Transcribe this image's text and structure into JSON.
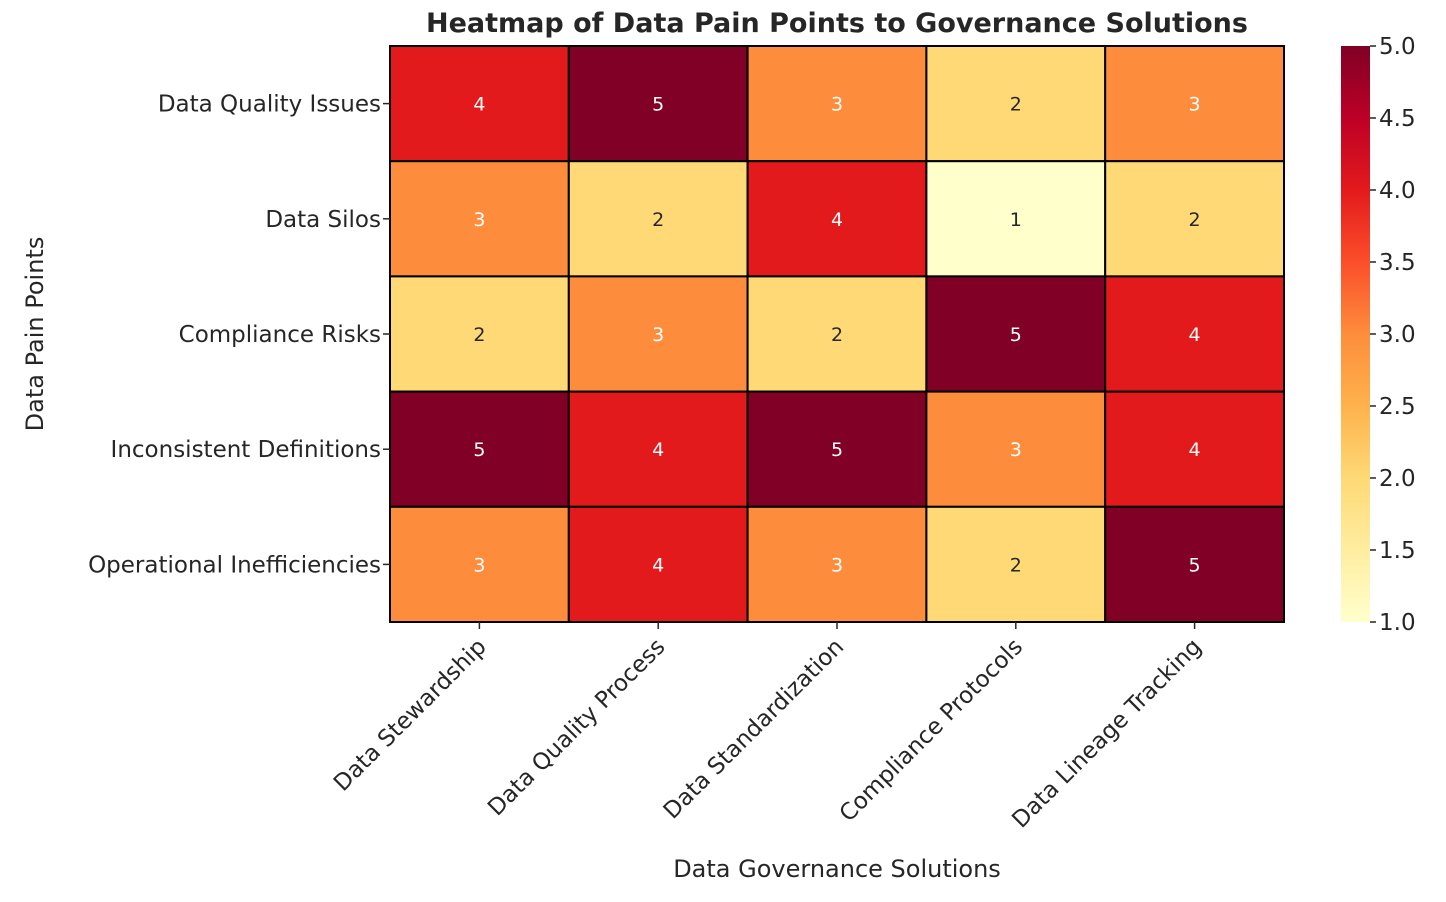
{
  "chart_data": {
    "type": "heatmap",
    "title": "Heatmap of Data Pain Points to Governance Solutions",
    "xlabel": "Data Governance Solutions",
    "ylabel": "Data Pain Points",
    "x_categories": [
      "Data Stewardship",
      "Data Quality Process",
      "Data Standardization",
      "Compliance Protocols",
      "Data Lineage Tracking"
    ],
    "y_categories": [
      "Data Quality Issues",
      "Data Silos",
      "Compliance Risks",
      "Inconsistent Definitions",
      "Operational Inefficiencies"
    ],
    "values": [
      [
        4,
        5,
        3,
        2,
        3
      ],
      [
        3,
        2,
        4,
        1,
        2
      ],
      [
        2,
        3,
        2,
        5,
        4
      ],
      [
        5,
        4,
        5,
        3,
        4
      ],
      [
        3,
        4,
        3,
        2,
        5
      ]
    ],
    "colorbar": {
      "min": 1.0,
      "max": 5.0,
      "ticks": [
        "1.0",
        "1.5",
        "2.0",
        "2.5",
        "3.0",
        "3.5",
        "4.0",
        "4.5",
        "5.0"
      ],
      "colormap": "YlOrRd",
      "stops": [
        "#ffffcc",
        "#ffeda0",
        "#fed976",
        "#feb24c",
        "#fd8d3c",
        "#fc4e2a",
        "#e31a1c",
        "#bd0026",
        "#800026"
      ]
    },
    "annotations": true,
    "cell_border_color": "#000000"
  }
}
